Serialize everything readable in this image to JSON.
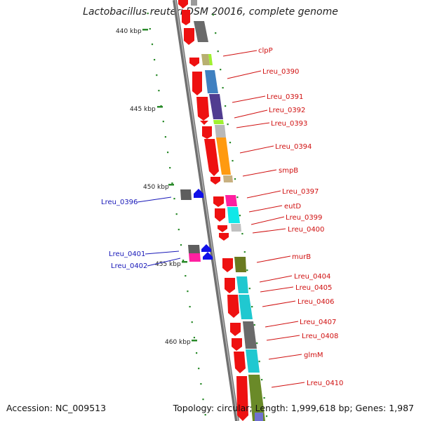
{
  "title": "Lactobacillus reuteri DSM 20016, complete genome",
  "footer": {
    "accession": "Accession: NC_009513",
    "summary": "Topology: circular; Length: 1,999,618 bp; Genes: 1,987"
  },
  "ticks": [
    "440 kbp",
    "445 kbp",
    "450 kbp",
    "455 kbp",
    "460 kbp"
  ],
  "colors": {
    "backbone": "#8a8a8a",
    "cds_arrow": "#ee1111",
    "forward_label": "#d01010",
    "reverse_label": "#1818b8",
    "reverse_arrow": "#1010e8",
    "tick": "#2a8a2a"
  },
  "genes_right": [
    "clpP",
    "Lreu_0390",
    "Lreu_0391",
    "Lreu_0392",
    "Lreu_0393",
    "Lreu_0394",
    "smpB",
    "Lreu_0397",
    "eutD",
    "Lreu_0399",
    "Lreu_0400",
    "murB",
    "Lreu_0404",
    "Lreu_0405",
    "Lreu_0406",
    "Lreu_0407",
    "Lreu_0408",
    "glmM",
    "Lreu_0410"
  ],
  "genes_left": [
    "Lreu_0396",
    "Lreu_0401",
    "Lreu_0402"
  ]
}
